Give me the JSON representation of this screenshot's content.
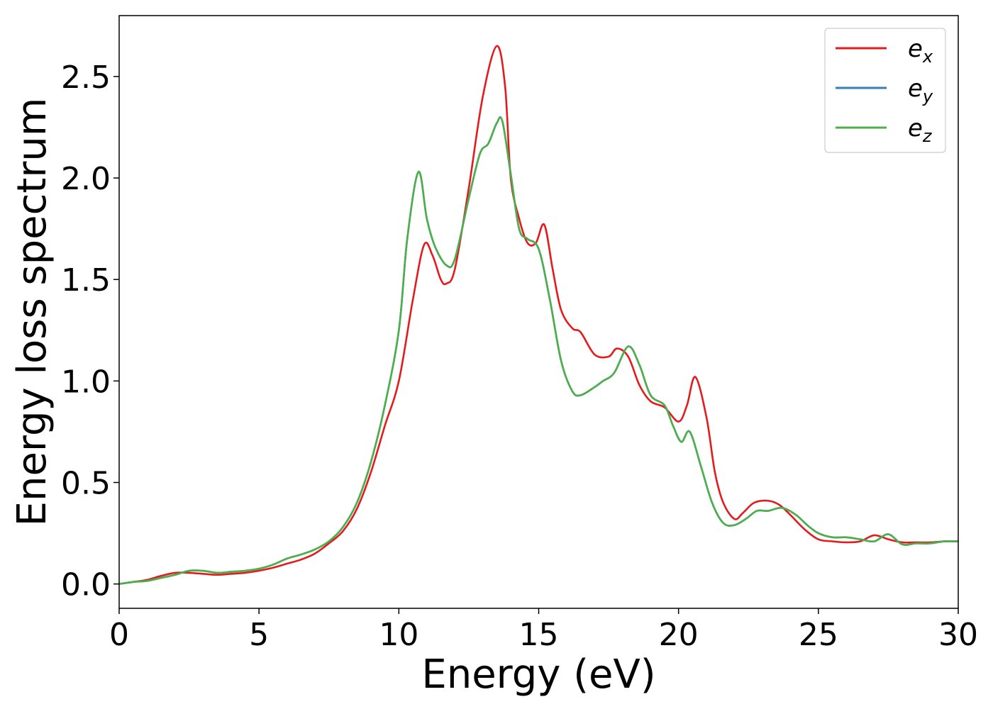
{
  "chart_data": {
    "type": "line",
    "title": "",
    "xlabel": "Energy (eV)",
    "ylabel": "Energy loss spectrum",
    "xlim": [
      0,
      30
    ],
    "ylim": [
      -0.12,
      2.8
    ],
    "xticks": [
      0,
      5,
      10,
      15,
      20,
      25,
      30
    ],
    "xtick_labels": [
      "0",
      "5",
      "10",
      "15",
      "20",
      "25",
      "30"
    ],
    "yticks": [
      0.0,
      0.5,
      1.0,
      1.5,
      2.0,
      2.5
    ],
    "ytick_labels": [
      "0.0",
      "0.5",
      "1.0",
      "1.5",
      "2.0",
      "2.5"
    ],
    "grid": false,
    "legend_position": "top-right",
    "series": [
      {
        "name": "e",
        "subscript": "x",
        "color": "#e41a1c",
        "x": [
          0,
          0.5,
          1,
          1.5,
          2,
          2.5,
          3,
          3.5,
          4,
          4.5,
          5,
          5.5,
          6,
          6.5,
          7,
          7.5,
          8,
          8.5,
          9,
          9.5,
          10,
          10.5,
          10.9,
          11.2,
          11.5,
          11.7,
          12,
          12.5,
          13,
          13.5,
          13.8,
          14,
          14.3,
          14.6,
          14.9,
          15.2,
          15.5,
          15.8,
          16.2,
          16.5,
          17,
          17.5,
          17.8,
          18.2,
          18.6,
          19,
          19.5,
          20,
          20.3,
          20.6,
          21,
          21.3,
          21.6,
          22,
          22.3,
          22.7,
          23.2,
          23.6,
          24,
          24.5,
          25,
          25.5,
          26,
          26.5,
          27,
          27.5,
          28,
          28.5,
          29,
          29.5,
          30
        ],
        "y": [
          0.0,
          0.01,
          0.02,
          0.04,
          0.055,
          0.055,
          0.05,
          0.045,
          0.05,
          0.055,
          0.065,
          0.08,
          0.1,
          0.12,
          0.15,
          0.2,
          0.26,
          0.37,
          0.55,
          0.78,
          1.0,
          1.4,
          1.67,
          1.62,
          1.5,
          1.48,
          1.55,
          1.95,
          2.4,
          2.65,
          2.45,
          2.0,
          1.8,
          1.68,
          1.68,
          1.77,
          1.55,
          1.35,
          1.26,
          1.24,
          1.13,
          1.12,
          1.16,
          1.12,
          0.98,
          0.9,
          0.87,
          0.8,
          0.88,
          1.02,
          0.82,
          0.55,
          0.4,
          0.32,
          0.35,
          0.4,
          0.41,
          0.39,
          0.34,
          0.27,
          0.22,
          0.21,
          0.205,
          0.21,
          0.24,
          0.22,
          0.205,
          0.205,
          0.205,
          0.21,
          0.21
        ]
      },
      {
        "name": "e",
        "subscript": "y",
        "color": "#377eb8",
        "x": [
          0,
          0.5,
          1,
          1.5,
          2,
          2.5,
          3,
          3.5,
          4,
          4.5,
          5,
          5.5,
          6,
          6.5,
          7,
          7.5,
          8,
          8.5,
          9,
          9.5,
          10,
          10.3,
          10.7,
          11,
          11.3,
          11.7,
          12,
          12.5,
          12.9,
          13.2,
          13.5,
          13.7,
          14,
          14.3,
          14.6,
          15,
          15.4,
          15.8,
          16.2,
          16.5,
          17,
          17.3,
          17.7,
          18.2,
          18.6,
          19,
          19.5,
          19.8,
          20.1,
          20.4,
          20.8,
          21.2,
          21.6,
          22,
          22.4,
          22.8,
          23.2,
          23.7,
          24.2,
          24.6,
          25,
          25.5,
          26,
          26.5,
          27,
          27.5,
          28,
          28.5,
          29,
          29.5,
          30
        ],
        "y": [
          0.0,
          0.01,
          0.015,
          0.03,
          0.045,
          0.065,
          0.065,
          0.055,
          0.06,
          0.065,
          0.075,
          0.095,
          0.125,
          0.145,
          0.17,
          0.21,
          0.28,
          0.4,
          0.6,
          0.88,
          1.25,
          1.7,
          2.03,
          1.8,
          1.66,
          1.57,
          1.6,
          1.9,
          2.12,
          2.17,
          2.27,
          2.28,
          2.02,
          1.75,
          1.7,
          1.65,
          1.4,
          1.1,
          0.95,
          0.93,
          0.97,
          1.0,
          1.04,
          1.17,
          1.08,
          0.93,
          0.88,
          0.78,
          0.7,
          0.75,
          0.58,
          0.4,
          0.3,
          0.29,
          0.32,
          0.36,
          0.36,
          0.375,
          0.34,
          0.29,
          0.25,
          0.23,
          0.23,
          0.22,
          0.21,
          0.245,
          0.195,
          0.2,
          0.2,
          0.21,
          0.21
        ]
      },
      {
        "name": "e",
        "subscript": "z",
        "color": "#4daf4a",
        "x": [
          0,
          0.5,
          1,
          1.5,
          2,
          2.5,
          3,
          3.5,
          4,
          4.5,
          5,
          5.5,
          6,
          6.5,
          7,
          7.5,
          8,
          8.5,
          9,
          9.5,
          10,
          10.3,
          10.7,
          11,
          11.3,
          11.7,
          12,
          12.5,
          12.9,
          13.2,
          13.5,
          13.7,
          14,
          14.3,
          14.6,
          15,
          15.4,
          15.8,
          16.2,
          16.5,
          17,
          17.3,
          17.7,
          18.2,
          18.6,
          19,
          19.5,
          19.8,
          20.1,
          20.4,
          20.8,
          21.2,
          21.6,
          22,
          22.4,
          22.8,
          23.2,
          23.7,
          24.2,
          24.6,
          25,
          25.5,
          26,
          26.5,
          27,
          27.5,
          28,
          28.5,
          29,
          29.5,
          30
        ],
        "y": [
          0.0,
          0.01,
          0.015,
          0.03,
          0.045,
          0.065,
          0.065,
          0.055,
          0.06,
          0.065,
          0.075,
          0.095,
          0.125,
          0.145,
          0.17,
          0.21,
          0.28,
          0.4,
          0.6,
          0.88,
          1.25,
          1.7,
          2.03,
          1.8,
          1.66,
          1.57,
          1.6,
          1.9,
          2.12,
          2.17,
          2.27,
          2.28,
          2.02,
          1.75,
          1.7,
          1.65,
          1.4,
          1.1,
          0.95,
          0.93,
          0.97,
          1.0,
          1.04,
          1.17,
          1.08,
          0.93,
          0.88,
          0.78,
          0.7,
          0.75,
          0.58,
          0.4,
          0.3,
          0.29,
          0.32,
          0.36,
          0.36,
          0.375,
          0.34,
          0.29,
          0.25,
          0.23,
          0.23,
          0.22,
          0.21,
          0.245,
          0.195,
          0.2,
          0.2,
          0.21,
          0.21
        ]
      }
    ]
  }
}
